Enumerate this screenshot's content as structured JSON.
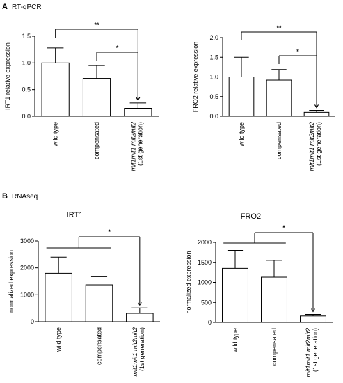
{
  "panels": [
    {
      "label": "A",
      "title": "RT-qPCR"
    },
    {
      "label": "B",
      "title": "RNAseq"
    }
  ],
  "chart_data": [
    {
      "type": "bar",
      "ylabel": "IRT1 relative expression",
      "categories": [
        "wild type",
        "compensated",
        "mit1mit1 mit2mit2\n(1st generation)"
      ],
      "values": [
        1.0,
        0.71,
        0.15
      ],
      "errors": [
        0.28,
        0.24,
        0.1
      ],
      "ylim": [
        0,
        1.5
      ],
      "yticks": [
        {
          "value": 0,
          "label": "0.0"
        },
        {
          "value": 0.5,
          "label": "0.5"
        },
        {
          "value": 1,
          "label": "1.0"
        },
        {
          "value": 1.5,
          "label": "1.5"
        }
      ],
      "annotations": [
        "**",
        "*"
      ]
    },
    {
      "type": "bar",
      "ylabel": "FRO2 relative expression",
      "categories": [
        "wild type",
        "compensated",
        "mit1mit1 mit2mit2\n(1st generation)"
      ],
      "values": [
        1.0,
        0.92,
        0.1
      ],
      "errors": [
        0.5,
        0.27,
        0.05
      ],
      "ylim": [
        0,
        2
      ],
      "yticks": [
        {
          "value": 0,
          "label": "0.0"
        },
        {
          "value": 0.5,
          "label": "0.5"
        },
        {
          "value": 1,
          "label": "1.0"
        },
        {
          "value": 1.5,
          "label": "1.5"
        },
        {
          "value": 2,
          "label": "2.0"
        }
      ],
      "annotations": [
        "**",
        "*"
      ]
    },
    {
      "type": "bar",
      "title": "IRT1",
      "ylabel": "normalized expression",
      "categories": [
        "wild type",
        "compensated",
        "mit1mit1 mit2mit2\n(1st generation)"
      ],
      "values": [
        1800,
        1370,
        310
      ],
      "errors": [
        600,
        300,
        200
      ],
      "ylim": [
        0,
        3000
      ],
      "yticks": [
        0,
        1000,
        2000,
        3000
      ],
      "annotations": [
        "*"
      ]
    },
    {
      "type": "bar",
      "title": "FRO2",
      "ylabel": "normalized expression",
      "categories": [
        "wild type",
        "compensated",
        "mit1mit1 mit2mit2\n(1st generation)"
      ],
      "values": [
        1350,
        1130,
        160
      ],
      "errors": [
        450,
        420,
        40
      ],
      "ylim": [
        0,
        2000
      ],
      "yticks": [
        0,
        500,
        1000,
        1500,
        2000
      ],
      "annotations": [
        "*"
      ]
    }
  ]
}
